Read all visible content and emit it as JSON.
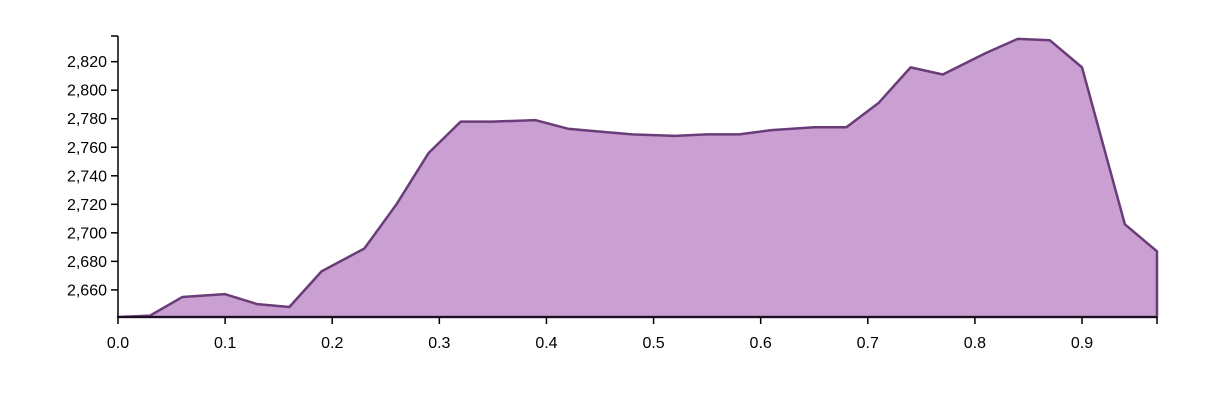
{
  "chart_data": {
    "type": "area",
    "title": "",
    "xlabel": "",
    "ylabel": "",
    "xlim": [
      0.0,
      0.97
    ],
    "ylim": [
      2641,
      2838
    ],
    "grid": false,
    "x_ticks": [
      "0.0",
      "0.1",
      "0.2",
      "0.3",
      "0.4",
      "0.5",
      "0.6",
      "0.7",
      "0.8",
      "0.9"
    ],
    "y_ticks": [
      "2,660",
      "2,680",
      "2,700",
      "2,720",
      "2,740",
      "2,760",
      "2,780",
      "2,800",
      "2,820"
    ],
    "colors": {
      "fill": "#c9a0d1",
      "stroke": "#6a3d79"
    },
    "series": [
      {
        "x": [
          0.0,
          0.03,
          0.06,
          0.1,
          0.13,
          0.16,
          0.19,
          0.23,
          0.26,
          0.29,
          0.32,
          0.35,
          0.39,
          0.42,
          0.45,
          0.48,
          0.52,
          0.55,
          0.58,
          0.61,
          0.65,
          0.68,
          0.71,
          0.74,
          0.77,
          0.81,
          0.84,
          0.87,
          0.9,
          0.94,
          0.97
        ],
        "values": [
          2641,
          2642,
          2655,
          2657,
          2650,
          2648,
          2673,
          2689,
          2720,
          2756,
          2778,
          2778,
          2779,
          2773,
          2771,
          2769,
          2768,
          2769,
          2769,
          2772,
          2774,
          2774,
          2791,
          2816,
          2811,
          2826,
          2836,
          2835,
          2816,
          2706,
          2687
        ]
      }
    ]
  }
}
